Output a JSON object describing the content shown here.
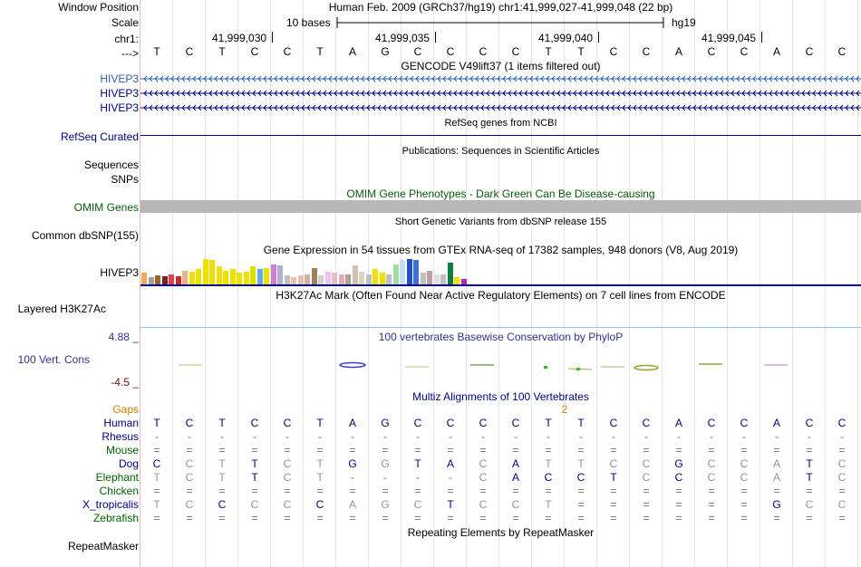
{
  "header": {
    "window_position_label": "Window Position",
    "window_position_text": "Human Feb. 2009 (GRCh37/hg19)   chr1:41,999,027-41,999,048 (22 bp)",
    "scale_label": "Scale",
    "scale_text": "10 bases",
    "scale_genome": "hg19",
    "chrom_label": "chr1:",
    "coordinates": [
      "41,999,030",
      "41,999,035",
      "41,999,040",
      "41,999,045"
    ],
    "strand_label": "--->"
  },
  "sequence": [
    "T",
    "C",
    "T",
    "C",
    "C",
    "T",
    "A",
    "G",
    "C",
    "C",
    "C",
    "C",
    "T",
    "T",
    "C",
    "C",
    "A",
    "C",
    "C",
    "A",
    "C",
    "C"
  ],
  "tracks": {
    "gencode_title": "GENCODE V49lift37 (1 items filtered out)",
    "gencode_items": [
      "HIVEP3",
      "HIVEP3",
      "HIVEP3"
    ],
    "refseq_title": "RefSeq genes from NCBI",
    "refseq_label": "RefSeq Curated",
    "publications_title": "Publications: Sequences in Scientific Articles",
    "sequences_label": "Sequences",
    "snps_label": "SNPs",
    "omim_title": "OMIM Gene Phenotypes - Dark Green Can Be Disease-causing",
    "omim_label": "OMIM Genes",
    "dbsnp_title": "Short Genetic Variants from dbSNP release 155",
    "dbsnp_label": "Common dbSNP(155)",
    "gtex_title": "Gene Expression in 54 tissues from GTEx RNA-seq of 17382 samples, 948 donors (V8, Aug 2019)",
    "gtex_label": "HIVEP3",
    "h3k27ac_title": "H3K27Ac Mark (Often Found Near Active Regulatory Elements) on 7 cell lines from ENCODE",
    "h3k27ac_label": "Layered H3K27Ac",
    "phylop_title": "100 vertebrates Basewise Conservation by PhyloP",
    "cons_label": "100 Vert. Cons",
    "cons_max": "4.88 _",
    "cons_min": "-4.5 _",
    "multiz_title": "Multiz Alignments of 100 Vertebrates",
    "gaps_label": "Gaps",
    "gaps_value": "2",
    "repeatmasker_title": "Repeating Elements by RepeatMasker",
    "repeatmasker_label": "RepeatMasker"
  },
  "gtex_bars": [
    {
      "v": 0.45,
      "c": "#f0a860"
    },
    {
      "v": 0.3,
      "c": "#a0a0a0"
    },
    {
      "v": 0.36,
      "c": "#a06030"
    },
    {
      "v": 0.32,
      "c": "#7a2020"
    },
    {
      "v": 0.4,
      "c": "#e04050"
    },
    {
      "v": 0.32,
      "c": "#c03030"
    },
    {
      "v": 0.55,
      "c": "#f0b080"
    },
    {
      "v": 0.5,
      "c": "#f0e000"
    },
    {
      "v": 0.6,
      "c": "#f0e000"
    },
    {
      "v": 1.0,
      "c": "#f0e000"
    },
    {
      "v": 0.95,
      "c": "#f0e000"
    },
    {
      "v": 0.7,
      "c": "#f0e000"
    },
    {
      "v": 0.55,
      "c": "#f0e000"
    },
    {
      "v": 0.6,
      "c": "#f0e000"
    },
    {
      "v": 0.45,
      "c": "#f0e000"
    },
    {
      "v": 0.5,
      "c": "#f0e000"
    },
    {
      "v": 0.7,
      "c": "#e0e000"
    },
    {
      "v": 0.6,
      "c": "#60b0e0"
    },
    {
      "v": 0.65,
      "c": "#f0e000"
    },
    {
      "v": 0.8,
      "c": "#d080d0"
    },
    {
      "v": 0.75,
      "c": "#b0b0d0"
    },
    {
      "v": 0.35,
      "c": "#c0c0c0"
    },
    {
      "v": 0.3,
      "c": "#f0c0b0"
    },
    {
      "v": 0.35,
      "c": "#e0c0b0"
    },
    {
      "v": 0.4,
      "c": "#d0b0a0"
    },
    {
      "v": 0.65,
      "c": "#a08060"
    },
    {
      "v": 0.35,
      "c": "#d0d0d0"
    },
    {
      "v": 0.5,
      "c": "#f0c0f0"
    },
    {
      "v": 0.45,
      "c": "#e0c0c0"
    },
    {
      "v": 0.38,
      "c": "#e0b0b0"
    },
    {
      "v": 0.4,
      "c": "#b0a090"
    },
    {
      "v": 0.75,
      "c": "#d0c0b0"
    },
    {
      "v": 0.5,
      "c": "#e0d0c0"
    },
    {
      "v": 0.38,
      "c": "#c0c0c0"
    },
    {
      "v": 0.6,
      "c": "#f0e000"
    },
    {
      "v": 0.45,
      "c": "#f0e000"
    },
    {
      "v": 0.4,
      "c": "#c0c0c0"
    },
    {
      "v": 0.8,
      "c": "#a0e0a0"
    },
    {
      "v": 0.95,
      "c": "#c0e0f0"
    },
    {
      "v": 1.0,
      "c": "#2050d0"
    },
    {
      "v": 0.95,
      "c": "#4070d0"
    },
    {
      "v": 0.45,
      "c": "#c0c0c0"
    },
    {
      "v": 0.55,
      "c": "#c0a0a0"
    },
    {
      "v": 0.4,
      "c": "#e0e0e0"
    },
    {
      "v": 0.38,
      "c": "#c0c0c0"
    },
    {
      "v": 0.85,
      "c": "#108040"
    },
    {
      "v": 0.3,
      "c": "#f0e000"
    },
    {
      "v": 0.2,
      "c": "#c020c0"
    }
  ],
  "multiz": [
    {
      "name": "Human",
      "color": "#000080",
      "bases": [
        "T",
        "C",
        "T",
        "C",
        "C",
        "T",
        "A",
        "G",
        "C",
        "C",
        "C",
        "C",
        "T",
        "T",
        "C",
        "C",
        "A",
        "C",
        "C",
        "A",
        "C",
        "C"
      ]
    },
    {
      "name": "Rhesus",
      "color": "#000080",
      "bases": [
        "-",
        "-",
        "-",
        "-",
        "-",
        "-",
        "-",
        "-",
        "-",
        "-",
        "-",
        "-",
        "-",
        "-",
        "-",
        "-",
        "-",
        "-",
        "-",
        "-",
        "-",
        "-"
      ]
    },
    {
      "name": "Mouse",
      "color": "#006400",
      "bases": [
        "=",
        "=",
        "=",
        "=",
        "=",
        "=",
        "=",
        "=",
        "=",
        "=",
        "=",
        "=",
        "=",
        "=",
        "=",
        "=",
        "=",
        "=",
        "=",
        "=",
        "=",
        "="
      ]
    },
    {
      "name": "Dog",
      "color": "#000080",
      "bases": [
        "C",
        "C",
        "T",
        "T",
        "C",
        "T",
        "G",
        "G",
        "T",
        "A",
        "C",
        "A",
        "T",
        "T",
        "C",
        "C",
        "G",
        "C",
        "C",
        "A",
        "T",
        "C"
      ]
    },
    {
      "name": "Elephant",
      "color": "#006400",
      "bases": [
        "T",
        "C",
        "T",
        "T",
        "C",
        "T",
        "-",
        "-",
        "-",
        "-",
        "C",
        "A",
        "C",
        "C",
        "T",
        "C",
        "C",
        "C",
        "C",
        "A",
        "T",
        "C"
      ]
    },
    {
      "name": "Chicken",
      "color": "#006400",
      "bases": [
        "=",
        "=",
        "=",
        "=",
        "=",
        "=",
        "=",
        "=",
        "=",
        "=",
        "=",
        "=",
        "=",
        "=",
        "=",
        "=",
        "=",
        "=",
        "=",
        "=",
        "=",
        "="
      ]
    },
    {
      "name": "X_tropicalis",
      "color": "#000080",
      "bases": [
        "T",
        "C",
        "C",
        "C",
        "C",
        "C",
        "A",
        "G",
        "C",
        "T",
        "C",
        "C",
        "T",
        "=",
        "=",
        "=",
        "=",
        "=",
        "=",
        "G",
        "C",
        "C"
      ]
    },
    {
      "name": "Zebrafish",
      "color": "#006400",
      "bases": [
        "=",
        "=",
        "=",
        "=",
        "=",
        "=",
        "=",
        "=",
        "=",
        "=",
        "=",
        "=",
        "=",
        "=",
        "=",
        "=",
        "=",
        "=",
        "=",
        "=",
        "=",
        "="
      ]
    }
  ],
  "colors": {
    "track_link": "#000080",
    "gencode_link": "#3060b0",
    "omim_title": "#0a5a0a",
    "cons": "#303090",
    "gaps": "#d08000",
    "cons_min": "#7a1010",
    "omim_bar": "#b8b8b8"
  }
}
